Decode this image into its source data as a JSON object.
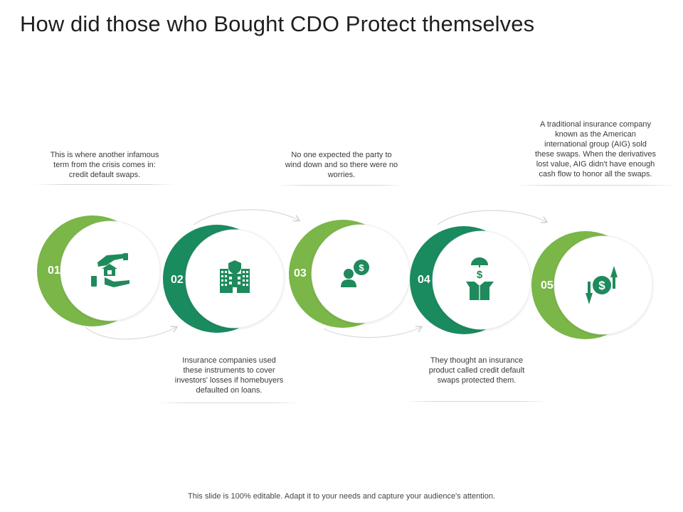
{
  "title": "How did those who Bought CDO Protect themselves",
  "colors": {
    "light_green": "#7ab648",
    "dark_green": "#1a8a5f",
    "icon_green": "#1f8a5b",
    "connector": "#d9d9d9"
  },
  "steps": [
    {
      "number": "01",
      "icon": "hand-house-icon",
      "caption": [
        "This is where another infamous",
        "term from the crisis comes in:",
        "credit default swaps."
      ]
    },
    {
      "number": "02",
      "icon": "office-building-icon",
      "caption": [
        "Insurance companies used",
        "these instruments to cover",
        "investors' losses if homebuyers",
        "defaulted on loans."
      ]
    },
    {
      "number": "03",
      "icon": "person-dollar-icon",
      "caption": [
        "No one expected the party to",
        "wind down and so there were no",
        "worries."
      ]
    },
    {
      "number": "04",
      "icon": "umbrella-box-icon",
      "caption": [
        "They thought an insurance",
        "product called credit default",
        "swaps protected them."
      ]
    },
    {
      "number": "05",
      "icon": "dollar-exchange-icon",
      "caption": [
        "A traditional insurance company",
        "known as the American",
        "international group (AIG) sold",
        "these swaps. When the derivatives",
        "lost value, AIG didn't have enough",
        "cash flow to honor all the swaps."
      ]
    }
  ],
  "footer": "This slide is 100% editable. Adapt it to your needs and capture your audience's attention."
}
